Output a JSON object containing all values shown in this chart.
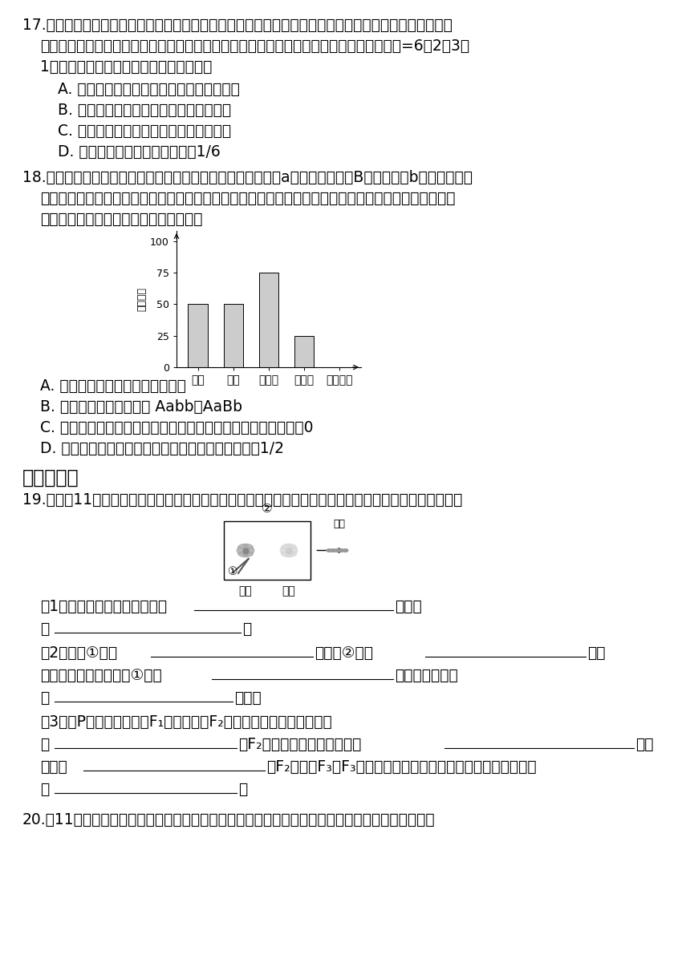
{
  "background_color": "#ffffff",
  "text_color": "#000000",
  "bar_categories": [
    "抗病",
    "感病",
    "无香味",
    "有香味",
    "性状类型"
  ],
  "bar_values": [
    50,
    50,
    75,
    25
  ],
  "bar_color": "#cccccc",
  "chart_ylabel": "性状数目",
  "chart_yticks": [
    0,
    25,
    50,
    75,
    100
  ]
}
